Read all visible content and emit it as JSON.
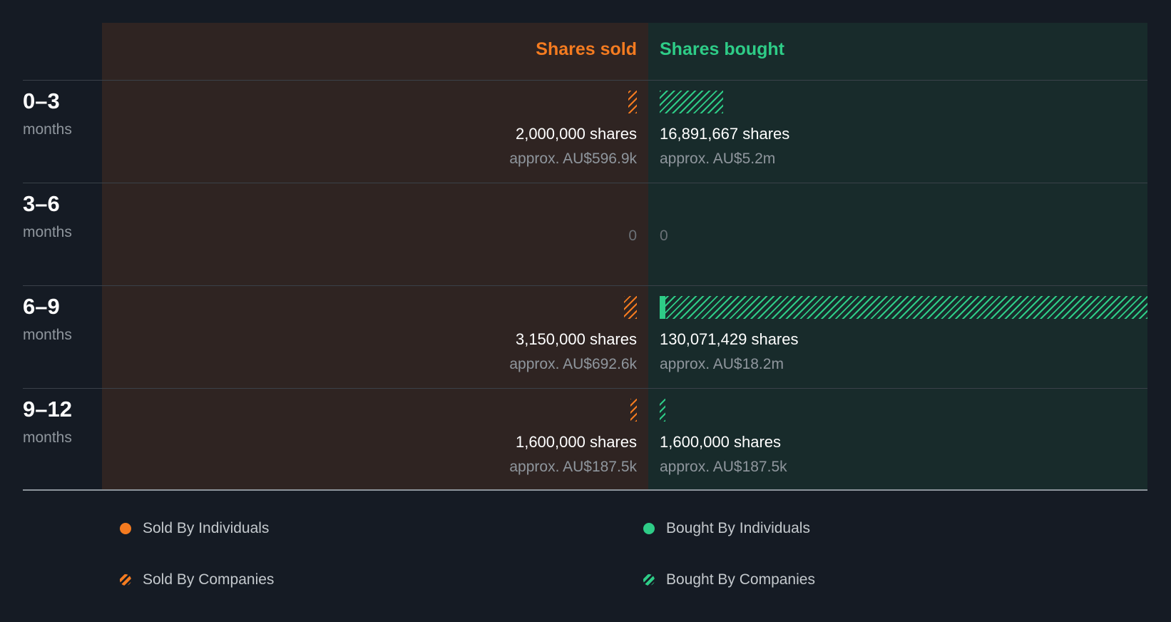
{
  "colors": {
    "sold": "#f47b20",
    "bought": "#2ecc87"
  },
  "chart_data": {
    "type": "bar",
    "title": "",
    "headers": {
      "sold": "Shares sold",
      "bought": "Shares bought"
    },
    "categories": [
      {
        "range": "0–3",
        "unit": "months"
      },
      {
        "range": "3–6",
        "unit": "months"
      },
      {
        "range": "6–9",
        "unit": "months"
      },
      {
        "range": "9–12",
        "unit": "months"
      }
    ],
    "sold": [
      {
        "shares": 2000000,
        "shares_label": "2,000,000 shares",
        "value_label": "approx. AU$596.9k",
        "individual_fraction": 0
      },
      {
        "shares": 0,
        "shares_label": "0",
        "value_label": "",
        "individual_fraction": 0
      },
      {
        "shares": 3150000,
        "shares_label": "3,150,000 shares",
        "value_label": "approx. AU$692.6k",
        "individual_fraction": 0
      },
      {
        "shares": 1600000,
        "shares_label": "1,600,000 shares",
        "value_label": "approx. AU$187.5k",
        "individual_fraction": 0
      }
    ],
    "bought": [
      {
        "shares": 16891667,
        "shares_label": "16,891,667 shares",
        "value_label": "approx. AU$5.2m",
        "individual_fraction": 0
      },
      {
        "shares": 0,
        "shares_label": "0",
        "value_label": "",
        "individual_fraction": 0
      },
      {
        "shares": 130071429,
        "shares_label": "130,071,429 shares",
        "value_label": "approx. AU$18.2m",
        "individual_fraction": 0.012
      },
      {
        "shares": 1600000,
        "shares_label": "1,600,000 shares",
        "value_label": "approx. AU$187.5k",
        "individual_fraction": 0
      }
    ],
    "max_shares": 130071429,
    "legend": [
      {
        "label": "Sold By Individuals",
        "style": "solid",
        "side": "sold"
      },
      {
        "label": "Bought By Individuals",
        "style": "solid",
        "side": "bought"
      },
      {
        "label": "Sold By Companies",
        "style": "hatched",
        "side": "sold"
      },
      {
        "label": "Bought By Companies",
        "style": "hatched",
        "side": "bought"
      }
    ]
  }
}
